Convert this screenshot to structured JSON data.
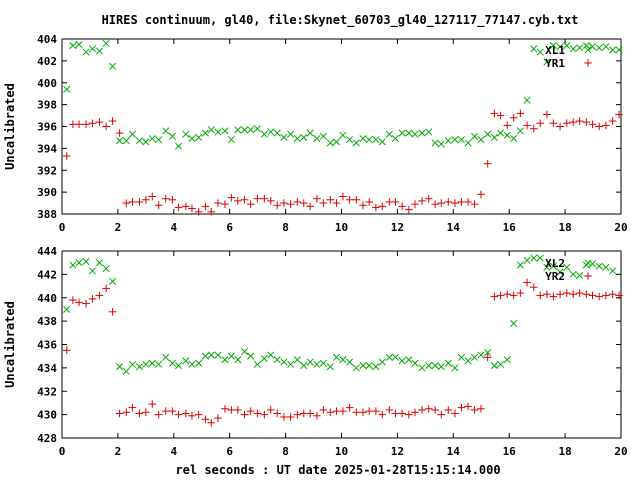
{
  "title": "HIRES continuum, gl40, file:Skynet_60703_gl40_127117_77147.cyb.txt",
  "xlabel": "rel seconds : UT date 2025-01-28T15:15:14.000",
  "colors": {
    "red": "#dd0000",
    "green": "#00a800",
    "axis": "#000000"
  },
  "chart_data": [
    {
      "type": "scatter",
      "xlim": [
        0,
        20
      ],
      "ylim": [
        388,
        404
      ],
      "xticks": [
        0,
        2,
        4,
        6,
        8,
        10,
        12,
        14,
        16,
        18,
        20
      ],
      "yticks": [
        388,
        390,
        392,
        394,
        396,
        398,
        400,
        402,
        404
      ],
      "ylabel": "Uncalibrated",
      "legend_position": "top-right",
      "series": [
        {
          "name": "XL1",
          "marker": "x",
          "color": "#00a800",
          "x": [
            0.17,
            0.39,
            0.61,
            0.86,
            1.09,
            1.34,
            1.58,
            1.81,
            2.06,
            2.3,
            2.52,
            2.77,
            3.0,
            3.23,
            3.46,
            3.71,
            3.95,
            4.17,
            4.43,
            4.65,
            4.89,
            5.13,
            5.34,
            5.58,
            5.83,
            6.06,
            6.29,
            6.53,
            6.75,
            6.99,
            7.24,
            7.47,
            7.7,
            7.94,
            8.18,
            8.42,
            8.65,
            8.88,
            9.12,
            9.35,
            9.6,
            9.82,
            10.05,
            10.29,
            10.53,
            10.77,
            10.99,
            11.23,
            11.46,
            11.71,
            11.93,
            12.17,
            12.41,
            12.63,
            12.88,
            13.12,
            13.35,
            13.57,
            13.82,
            14.06,
            14.29,
            14.53,
            14.76,
            14.99,
            15.23,
            15.47,
            15.69,
            15.93,
            16.16,
            16.4,
            16.64,
            16.88,
            17.11,
            17.35,
            17.58,
            17.82,
            18.06,
            18.29,
            18.52,
            18.76,
            18.98,
            19.22,
            19.46,
            19.7,
            19.93
          ],
          "y": [
            399.4,
            403.4,
            403.5,
            402.8,
            403.1,
            402.9,
            403.6,
            401.5,
            394.7,
            394.7,
            395.3,
            394.7,
            394.6,
            394.9,
            394.8,
            395.6,
            395.1,
            394.2,
            395.3,
            394.9,
            395.0,
            395.4,
            395.7,
            395.5,
            395.6,
            394.8,
            395.7,
            395.7,
            395.7,
            395.8,
            395.3,
            395.5,
            395.4,
            395.0,
            395.3,
            394.9,
            395.0,
            395.4,
            394.9,
            395.1,
            394.5,
            394.6,
            395.2,
            394.8,
            394.5,
            394.9,
            394.8,
            394.8,
            394.6,
            395.3,
            394.9,
            395.4,
            395.4,
            395.3,
            395.4,
            395.5,
            394.5,
            394.4,
            394.7,
            394.8,
            394.8,
            394.5,
            395.1,
            394.8,
            395.3,
            395.0,
            395.4,
            395.2,
            394.9,
            395.6,
            398.4,
            403.1,
            402.8,
            401.9,
            403.4,
            403.3,
            403.4,
            403.1,
            403.2,
            403.4,
            403.3,
            403.2,
            403.3,
            403.0,
            403.0
          ],
          "_note_ignore": ""
        },
        {
          "name": "YR1",
          "marker": "+",
          "color": "#dd0000",
          "x": [
            0.17,
            0.39,
            0.61,
            0.86,
            1.09,
            1.34,
            1.58,
            1.81,
            2.06,
            2.3,
            2.52,
            2.77,
            3.0,
            3.23,
            3.46,
            3.71,
            3.95,
            4.17,
            4.43,
            4.65,
            4.89,
            5.13,
            5.34,
            5.58,
            5.83,
            6.06,
            6.29,
            6.53,
            6.75,
            6.99,
            7.24,
            7.47,
            7.7,
            7.94,
            8.18,
            8.42,
            8.65,
            8.88,
            9.12,
            9.35,
            9.6,
            9.82,
            10.05,
            10.29,
            10.53,
            10.77,
            10.99,
            11.23,
            11.46,
            11.71,
            11.93,
            12.17,
            12.41,
            12.63,
            12.88,
            13.12,
            13.35,
            13.57,
            13.82,
            14.06,
            14.29,
            14.53,
            14.76,
            14.99,
            15.23,
            15.47,
            15.69,
            15.93,
            16.16,
            16.4,
            16.64,
            16.88,
            17.11,
            17.35,
            17.58,
            17.82,
            18.06,
            18.29,
            18.52,
            18.76,
            18.98,
            19.22,
            19.46,
            19.7,
            19.93
          ],
          "y": [
            393.3,
            396.2,
            396.2,
            396.2,
            396.3,
            396.4,
            396.0,
            396.5,
            395.4,
            389.0,
            389.1,
            389.1,
            389.3,
            389.6,
            388.8,
            389.4,
            389.3,
            388.6,
            388.7,
            388.5,
            388.2,
            388.7,
            388.2,
            389.0,
            388.9,
            389.5,
            389.2,
            389.3,
            388.9,
            389.4,
            389.4,
            389.2,
            388.8,
            389.0,
            388.9,
            389.1,
            389.0,
            388.7,
            389.4,
            389.0,
            389.3,
            389.0,
            389.6,
            389.3,
            389.3,
            388.8,
            389.1,
            388.6,
            388.7,
            389.1,
            389.1,
            388.7,
            388.4,
            388.9,
            389.2,
            389.4,
            388.9,
            389.0,
            389.1,
            389.0,
            389.1,
            389.1,
            388.9,
            389.8,
            392.6,
            397.2,
            397.0,
            396.1,
            396.8,
            397.2,
            396.1,
            395.8,
            396.3,
            397.1,
            396.3,
            396.0,
            396.3,
            396.4,
            396.5,
            396.4,
            396.2,
            396.0,
            396.1,
            396.5,
            397.1
          ],
          "_note_ignore": ""
        }
      ]
    },
    {
      "type": "scatter",
      "xlim": [
        0,
        20
      ],
      "ylim": [
        428,
        444
      ],
      "xticks": [
        0,
        2,
        4,
        6,
        8,
        10,
        12,
        14,
        16,
        18,
        20
      ],
      "yticks": [
        428,
        430,
        432,
        434,
        436,
        438,
        440,
        442,
        444
      ],
      "ylabel": "Uncalibrated",
      "legend_position": "top-right",
      "series": [
        {
          "name": "XL2",
          "marker": "x",
          "color": "#00a800",
          "x": [
            0.17,
            0.39,
            0.61,
            0.86,
            1.09,
            1.34,
            1.58,
            1.81,
            2.06,
            2.3,
            2.52,
            2.77,
            3.0,
            3.23,
            3.46,
            3.71,
            3.95,
            4.17,
            4.43,
            4.65,
            4.89,
            5.13,
            5.34,
            5.58,
            5.83,
            6.06,
            6.29,
            6.53,
            6.75,
            6.99,
            7.24,
            7.47,
            7.7,
            7.94,
            8.18,
            8.42,
            8.65,
            8.88,
            9.12,
            9.35,
            9.6,
            9.82,
            10.05,
            10.29,
            10.53,
            10.77,
            10.99,
            11.23,
            11.46,
            11.71,
            11.93,
            12.17,
            12.41,
            12.63,
            12.88,
            13.12,
            13.35,
            13.57,
            13.82,
            14.06,
            14.29,
            14.53,
            14.76,
            14.99,
            15.23,
            15.47,
            15.69,
            15.93,
            16.16,
            16.4,
            16.64,
            16.88,
            17.11,
            17.35,
            17.58,
            17.82,
            18.06,
            18.29,
            18.52,
            18.76,
            18.98,
            19.22,
            19.46,
            19.7
          ],
          "y": [
            439.0,
            442.8,
            443.0,
            443.1,
            442.3,
            443.0,
            442.5,
            441.4,
            434.1,
            433.7,
            434.3,
            434.1,
            434.3,
            434.4,
            434.3,
            434.9,
            434.4,
            434.2,
            434.6,
            434.3,
            434.4,
            435.0,
            435.1,
            435.1,
            434.7,
            435.0,
            434.7,
            435.4,
            435.0,
            434.3,
            434.8,
            435.1,
            434.7,
            434.5,
            434.3,
            434.7,
            434.2,
            434.5,
            434.3,
            434.4,
            434.1,
            434.9,
            434.7,
            434.5,
            434.0,
            434.2,
            434.2,
            434.1,
            434.5,
            434.9,
            434.9,
            434.6,
            434.7,
            434.4,
            434.0,
            434.2,
            434.2,
            434.1,
            434.4,
            434.0,
            434.9,
            434.6,
            434.9,
            435.1,
            435.3,
            434.2,
            434.3,
            434.7,
            437.8,
            442.8,
            443.2,
            443.4,
            443.4,
            442.6,
            442.7,
            442.2,
            442.6,
            442.0,
            441.9,
            442.8,
            442.9,
            442.7,
            442.6,
            442.3
          ],
          "_note_ignore": ""
        },
        {
          "name": "YR2",
          "marker": "+",
          "color": "#dd0000",
          "x": [
            0.17,
            0.39,
            0.61,
            0.86,
            1.09,
            1.34,
            1.58,
            1.81,
            2.06,
            2.3,
            2.52,
            2.77,
            3.0,
            3.23,
            3.46,
            3.71,
            3.95,
            4.17,
            4.43,
            4.65,
            4.89,
            5.13,
            5.34,
            5.58,
            5.83,
            6.06,
            6.29,
            6.53,
            6.75,
            6.99,
            7.24,
            7.47,
            7.7,
            7.94,
            8.18,
            8.42,
            8.65,
            8.88,
            9.12,
            9.35,
            9.6,
            9.82,
            10.05,
            10.29,
            10.53,
            10.77,
            10.99,
            11.23,
            11.46,
            11.71,
            11.93,
            12.17,
            12.41,
            12.63,
            12.88,
            13.12,
            13.35,
            13.57,
            13.82,
            14.06,
            14.29,
            14.53,
            14.76,
            14.99,
            15.23,
            15.47,
            15.69,
            15.93,
            16.16,
            16.4,
            16.64,
            16.88,
            17.11,
            17.35,
            17.58,
            17.82,
            18.06,
            18.29,
            18.52,
            18.76,
            18.98,
            19.22,
            19.46,
            19.7,
            19.93
          ],
          "y": [
            435.5,
            439.8,
            439.6,
            439.5,
            439.9,
            440.2,
            440.8,
            438.8,
            430.1,
            430.2,
            430.6,
            430.1,
            430.2,
            430.9,
            430.0,
            430.3,
            430.3,
            430.0,
            430.1,
            429.9,
            430.0,
            429.6,
            429.3,
            429.7,
            430.5,
            430.4,
            430.4,
            430.0,
            430.3,
            430.1,
            430.0,
            430.4,
            430.1,
            429.8,
            429.8,
            430.0,
            430.1,
            430.1,
            429.9,
            430.4,
            430.2,
            430.3,
            430.3,
            430.6,
            430.2,
            430.2,
            430.3,
            430.3,
            430.0,
            430.4,
            430.1,
            430.1,
            430.0,
            430.2,
            430.4,
            430.5,
            430.4,
            430.0,
            430.4,
            430.1,
            430.6,
            430.7,
            430.4,
            430.5,
            434.9,
            440.1,
            440.2,
            440.3,
            440.2,
            440.4,
            441.3,
            440.9,
            440.2,
            440.3,
            440.1,
            440.3,
            440.4,
            440.3,
            440.4,
            440.3,
            440.2,
            440.1,
            440.2,
            440.3,
            440.2
          ],
          "_note_ignore": ""
        }
      ]
    }
  ]
}
